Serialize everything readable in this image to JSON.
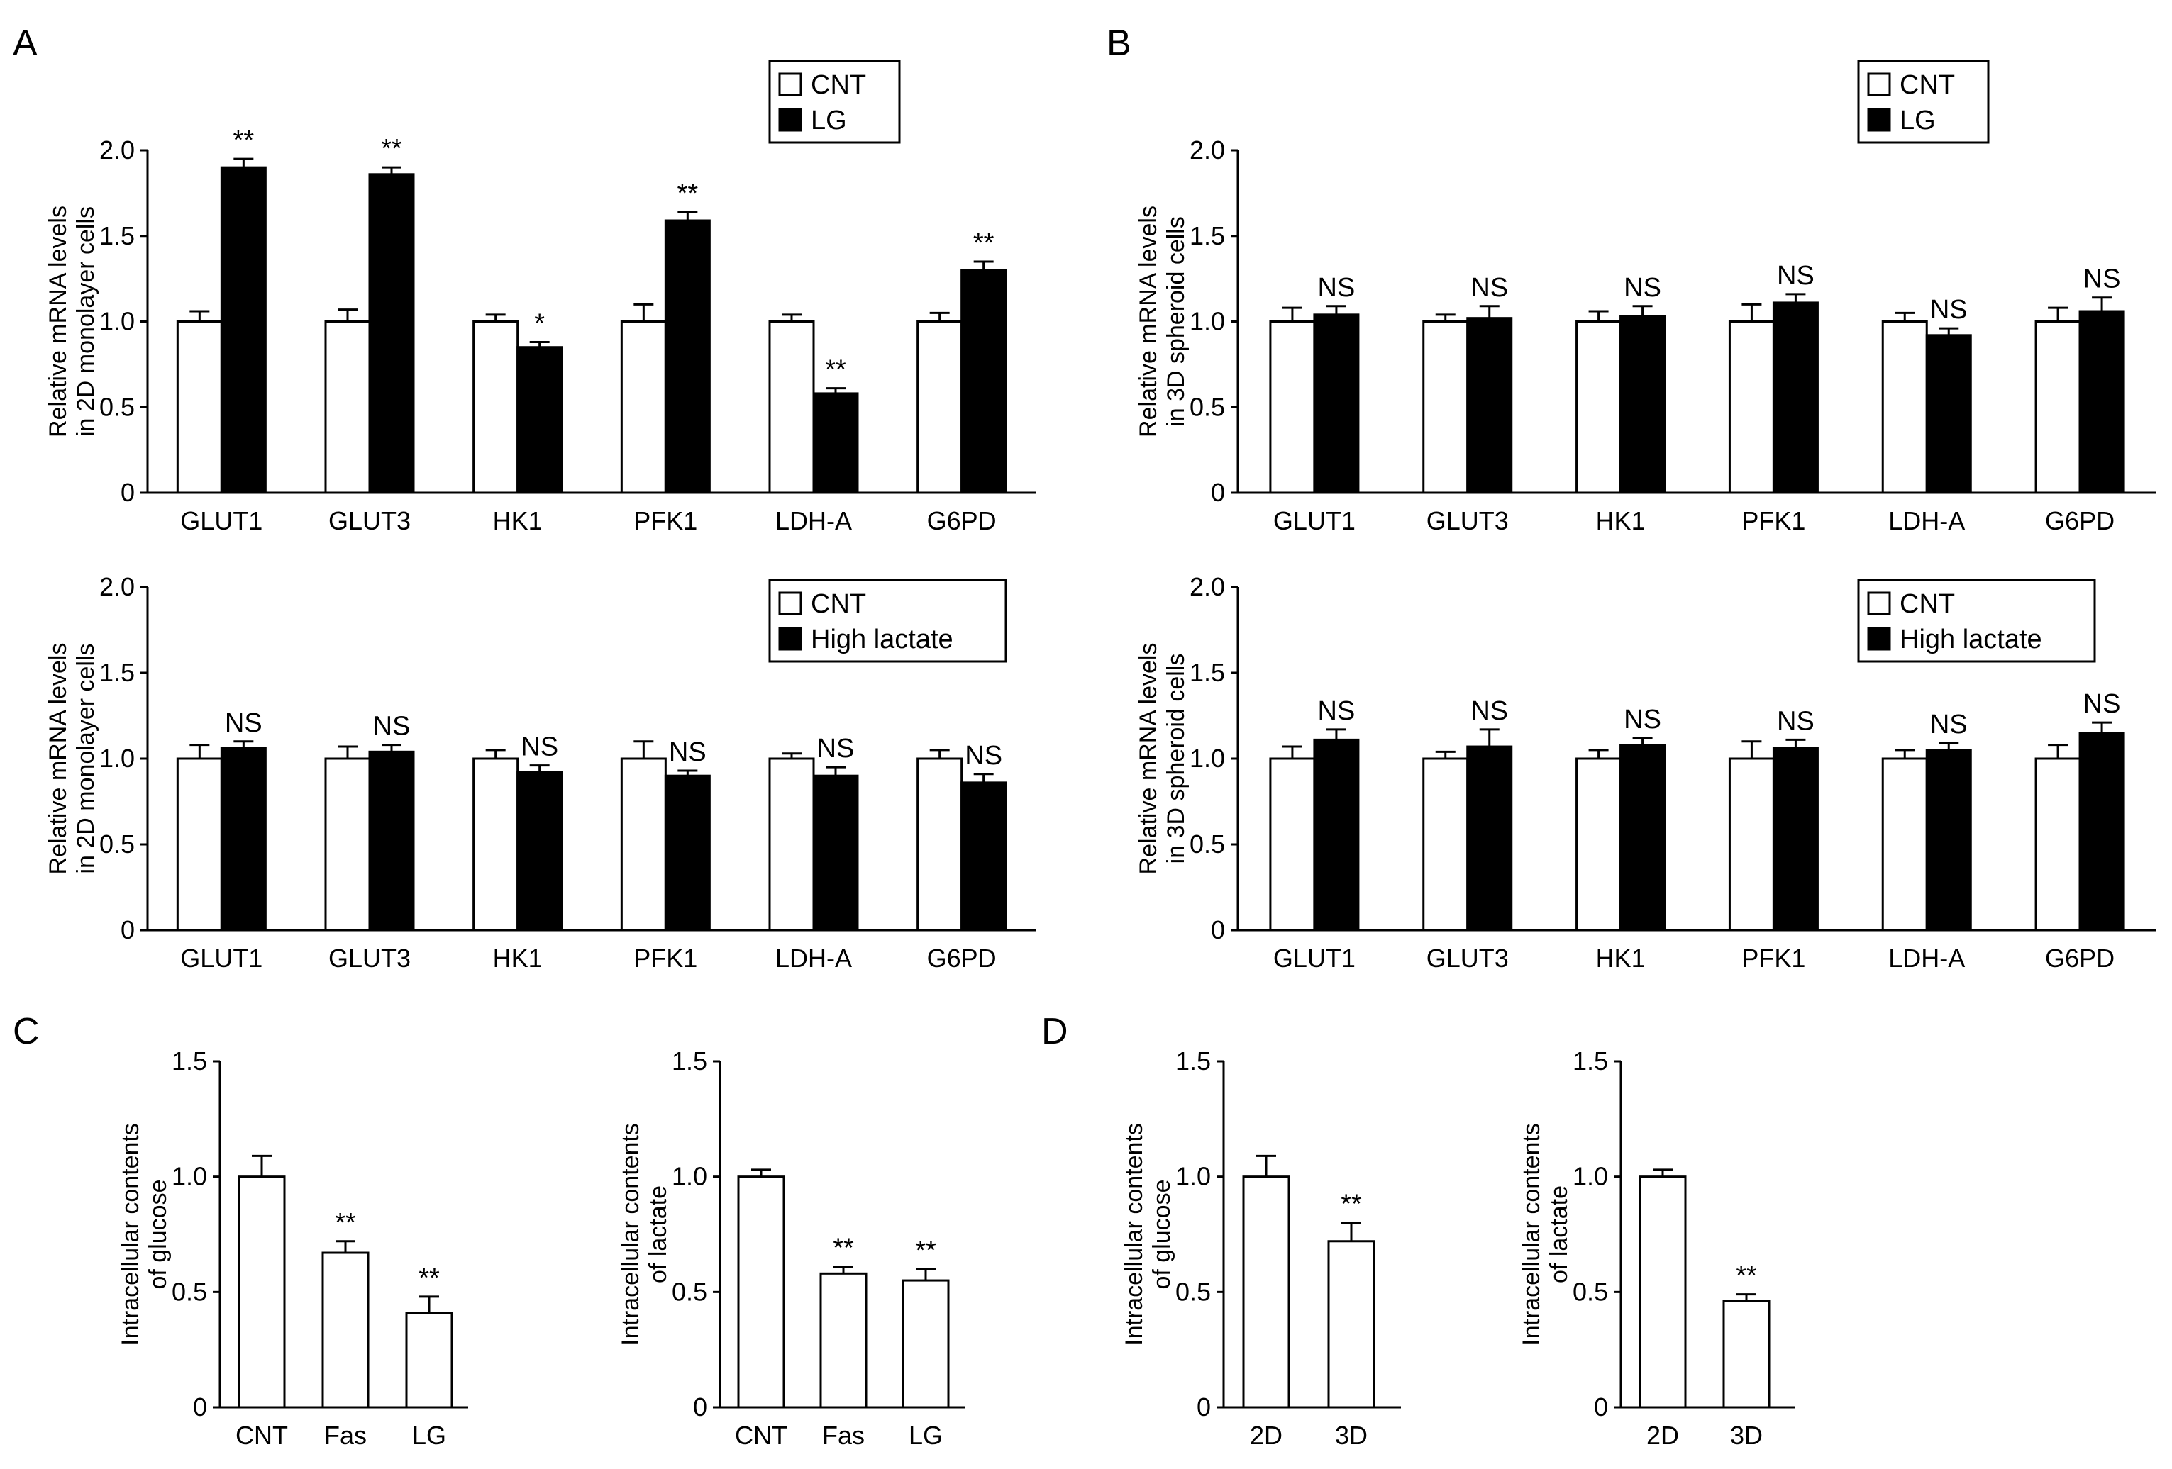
{
  "panel_letters": {
    "A": "A",
    "B": "B",
    "C": "C",
    "D": "D"
  },
  "chart_data": [
    {
      "type": "bar",
      "panel": "A",
      "ylabel": "Relative mRNA levels in 2D monolayer cells",
      "ylabel_lines": [
        "Relative mRNA levels",
        "in 2D monolayer cells"
      ],
      "ylim": [
        0,
        2.0
      ],
      "yticks": [
        0,
        0.5,
        1.0,
        1.5,
        2.0
      ],
      "ytick_labels": [
        "0",
        "0.5",
        "1.0",
        "1.5",
        "2.0"
      ],
      "categories": [
        "GLUT1",
        "GLUT3",
        "HK1",
        "PFK1",
        "LDH-A",
        "G6PD"
      ],
      "series": [
        {
          "name": "CNT",
          "color": "#ffffff",
          "values": [
            1.0,
            1.0,
            1.0,
            1.0,
            1.0,
            1.0
          ],
          "errors": [
            0.06,
            0.07,
            0.04,
            0.1,
            0.04,
            0.05
          ]
        },
        {
          "name": "LG",
          "color": "#000000",
          "values": [
            1.9,
            1.86,
            0.85,
            1.59,
            0.58,
            1.3
          ],
          "errors": [
            0.05,
            0.04,
            0.03,
            0.05,
            0.03,
            0.05
          ]
        }
      ],
      "annotations": [
        "**",
        "**",
        "*",
        "**",
        "**",
        "**"
      ],
      "legend": "top-right",
      "grid": false
    },
    {
      "type": "bar",
      "panel": "B",
      "ylabel": "Relative mRNA levels in 3D spheroid cells",
      "ylabel_lines": [
        "Relative mRNA levels",
        "in 3D spheroid cells"
      ],
      "ylim": [
        0,
        2.0
      ],
      "yticks": [
        0,
        0.5,
        1.0,
        1.5,
        2.0
      ],
      "ytick_labels": [
        "0",
        "0.5",
        "1.0",
        "1.5",
        "2.0"
      ],
      "categories": [
        "GLUT1",
        "GLUT3",
        "HK1",
        "PFK1",
        "LDH-A",
        "G6PD"
      ],
      "series": [
        {
          "name": "CNT",
          "color": "#ffffff",
          "values": [
            1.0,
            1.0,
            1.0,
            1.0,
            1.0,
            1.0
          ],
          "errors": [
            0.08,
            0.04,
            0.06,
            0.1,
            0.05,
            0.08
          ]
        },
        {
          "name": "LG",
          "color": "#000000",
          "values": [
            1.04,
            1.02,
            1.03,
            1.11,
            0.92,
            1.06
          ],
          "errors": [
            0.05,
            0.07,
            0.06,
            0.05,
            0.04,
            0.08
          ]
        }
      ],
      "annotations": [
        "NS",
        "NS",
        "NS",
        "NS",
        "NS",
        "NS"
      ],
      "legend": "top-right",
      "grid": false
    },
    {
      "type": "bar",
      "panel": "A",
      "ylabel": "Relative mRNA levels in 2D monolayer cells",
      "ylabel_lines": [
        "Relative mRNA levels",
        "in 2D monolayer cells"
      ],
      "ylim": [
        0,
        2.0
      ],
      "yticks": [
        0,
        0.5,
        1.0,
        1.5,
        2.0
      ],
      "ytick_labels": [
        "0",
        "0.5",
        "1.0",
        "1.5",
        "2.0"
      ],
      "categories": [
        "GLUT1",
        "GLUT3",
        "HK1",
        "PFK1",
        "LDH-A",
        "G6PD"
      ],
      "series": [
        {
          "name": "CNT",
          "color": "#ffffff",
          "values": [
            1.0,
            1.0,
            1.0,
            1.0,
            1.0,
            1.0
          ],
          "errors": [
            0.08,
            0.07,
            0.05,
            0.1,
            0.03,
            0.05
          ]
        },
        {
          "name": "High lactate",
          "color": "#000000",
          "values": [
            1.06,
            1.04,
            0.92,
            0.9,
            0.9,
            0.86
          ],
          "errors": [
            0.04,
            0.04,
            0.04,
            0.03,
            0.05,
            0.05
          ]
        }
      ],
      "annotations": [
        "NS",
        "NS",
        "NS",
        "NS",
        "NS",
        "NS"
      ],
      "legend": "top-right",
      "grid": false
    },
    {
      "type": "bar",
      "panel": "B",
      "ylabel": "Relative mRNA levels in 3D spheroid cells",
      "ylabel_lines": [
        "Relative mRNA levels",
        "in 3D spheroid cells"
      ],
      "ylim": [
        0,
        2.0
      ],
      "yticks": [
        0,
        0.5,
        1.0,
        1.5,
        2.0
      ],
      "ytick_labels": [
        "0",
        "0.5",
        "1.0",
        "1.5",
        "2.0"
      ],
      "categories": [
        "GLUT1",
        "GLUT3",
        "HK1",
        "PFK1",
        "LDH-A",
        "G6PD"
      ],
      "series": [
        {
          "name": "CNT",
          "color": "#ffffff",
          "values": [
            1.0,
            1.0,
            1.0,
            1.0,
            1.0,
            1.0
          ],
          "errors": [
            0.07,
            0.04,
            0.05,
            0.1,
            0.05,
            0.08
          ]
        },
        {
          "name": "High lactate",
          "color": "#000000",
          "values": [
            1.11,
            1.07,
            1.08,
            1.06,
            1.05,
            1.15
          ],
          "errors": [
            0.06,
            0.1,
            0.04,
            0.05,
            0.04,
            0.06
          ]
        }
      ],
      "annotations": [
        "NS",
        "NS",
        "NS",
        "NS",
        "NS",
        "NS"
      ],
      "legend": "top-right",
      "grid": false
    },
    {
      "type": "bar",
      "panel": "C",
      "ylabel": "Intracellular contents of glucose",
      "ylabel_lines": [
        "Intracellular contents",
        "of glucose"
      ],
      "ylim": [
        0,
        1.5
      ],
      "yticks": [
        0,
        0.5,
        1.0,
        1.5
      ],
      "ytick_labels": [
        "0",
        "0.5",
        "1.0",
        "1.5"
      ],
      "categories": [
        "CNT",
        "Fas",
        "LG"
      ],
      "values": [
        1.0,
        0.67,
        0.41
      ],
      "errors": [
        0.09,
        0.05,
        0.07
      ],
      "annotations": [
        "",
        "**",
        "**"
      ],
      "grid": false
    },
    {
      "type": "bar",
      "panel": "C",
      "ylabel": "Intracellular contents of lactate",
      "ylabel_lines": [
        "Intracellular contents",
        "of lactate"
      ],
      "ylim": [
        0,
        1.5
      ],
      "yticks": [
        0,
        0.5,
        1.0,
        1.5
      ],
      "ytick_labels": [
        "0",
        "0.5",
        "1.0",
        "1.5"
      ],
      "categories": [
        "CNT",
        "Fas",
        "LG"
      ],
      "values": [
        1.0,
        0.58,
        0.55
      ],
      "errors": [
        0.03,
        0.03,
        0.05
      ],
      "annotations": [
        "",
        "**",
        "**"
      ],
      "grid": false
    },
    {
      "type": "bar",
      "panel": "D",
      "ylabel": "Intracellular contents of glucose",
      "ylabel_lines": [
        "Intracellular contents",
        "of glucose"
      ],
      "ylim": [
        0,
        1.5
      ],
      "yticks": [
        0,
        0.5,
        1.0,
        1.5
      ],
      "ytick_labels": [
        "0",
        "0.5",
        "1.0",
        "1.5"
      ],
      "categories": [
        "2D",
        "3D"
      ],
      "values": [
        1.0,
        0.72
      ],
      "errors": [
        0.09,
        0.08
      ],
      "annotations": [
        "",
        "**"
      ],
      "grid": false
    },
    {
      "type": "bar",
      "panel": "D",
      "ylabel": "Intracellular contents of lactate",
      "ylabel_lines": [
        "Intracellular contents",
        "of lactate"
      ],
      "ylim": [
        0,
        1.5
      ],
      "yticks": [
        0,
        0.5,
        1.0,
        1.5
      ],
      "ytick_labels": [
        "0",
        "0.5",
        "1.0",
        "1.5"
      ],
      "categories": [
        "2D",
        "3D"
      ],
      "values": [
        1.0,
        0.46
      ],
      "errors": [
        0.03,
        0.03
      ],
      "annotations": [
        "",
        "**"
      ],
      "grid": false
    }
  ]
}
